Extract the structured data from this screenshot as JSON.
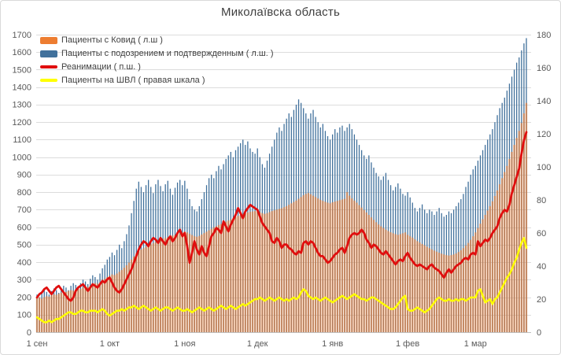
{
  "chart_data": {
    "type": "bar",
    "subtype": "combo-daily-bars-with-lines",
    "title": "Миколаївска область",
    "grid": true,
    "legend_position": "top-left",
    "left_axis": {
      "min": 0,
      "max": 1700,
      "step": 100,
      "side": "left"
    },
    "right_axis": {
      "min": 0,
      "max": 180,
      "step": 20,
      "side": "right"
    },
    "x_tick_labels": [
      "1 сен",
      "1 окт",
      "1 ноя",
      "1 дек",
      "1 янв",
      "1 фев",
      "1 мар"
    ],
    "x_tick_day_index": [
      0,
      30,
      61,
      91,
      122,
      153,
      181
    ],
    "colors": {
      "covid": "#ED7D31",
      "suspected": "#41719C",
      "reanimation": "#E00E0E",
      "shvl": "#FFFF00",
      "gridline": "#DCDCDC",
      "axis_text": "#595959"
    },
    "series": [
      {
        "name": "Пациенты с Ковид ( л.ш )",
        "type": "bar",
        "axis": "left",
        "color": "#ED7D31",
        "values": [
          195,
          198,
          192,
          200,
          206,
          203,
          210,
          216,
          213,
          220,
          226,
          222,
          230,
          236,
          240,
          237,
          244,
          250,
          247,
          255,
          262,
          258,
          266,
          274,
          280,
          277,
          285,
          295,
          305,
          315,
          322,
          330,
          326,
          335,
          345,
          355,
          368,
          382,
          398,
          415,
          432,
          450,
          462,
          472,
          480,
          488,
          495,
          502,
          508,
          515,
          522,
          528,
          533,
          538,
          543,
          548,
          552,
          556,
          560,
          565,
          570,
          575,
          570,
          562,
          555,
          548,
          545,
          550,
          558,
          566,
          574,
          582,
          590,
          598,
          605,
          612,
          618,
          625,
          632,
          638,
          645,
          652,
          658,
          664,
          670,
          676,
          680,
          684,
          688,
          690,
          692,
          690,
          686,
          680,
          676,
          680,
          686,
          692,
          696,
          700,
          704,
          708,
          714,
          720,
          728,
          736,
          744,
          752,
          762,
          772,
          782,
          790,
          795,
          788,
          780,
          772,
          764,
          756,
          750,
          745,
          740,
          736,
          742,
          746,
          750,
          754,
          758,
          762,
          800,
          780,
          764,
          752,
          740,
          726,
          712,
          698,
          684,
          670,
          656,
          642,
          628,
          615,
          605,
          595,
          586,
          578,
          571,
          565,
          560,
          556,
          560,
          565,
          570,
          556,
          548,
          540,
          530,
          520,
          512,
          504,
          496,
          488,
          480,
          473,
          466,
          460,
          454,
          448,
          444,
          440,
          438,
          440,
          444,
          450,
          458,
          468,
          480,
          494,
          510,
          528,
          548,
          570,
          595,
          620,
          645,
          670,
          695,
          720,
          748,
          778,
          810,
          845,
          880,
          915,
          950,
          990,
          1030,
          1070,
          1110,
          1150,
          1195,
          1250,
          1310
        ]
      },
      {
        "name": "Пациенты с подозрением и подтвержденным ( л.ш. )",
        "type": "bar",
        "axis": "left",
        "color": "#41719C",
        "values": [
          215,
          200,
          225,
          240,
          230,
          215,
          235,
          250,
          240,
          225,
          250,
          265,
          255,
          240,
          265,
          280,
          270,
          255,
          280,
          300,
          290,
          275,
          305,
          325,
          315,
          300,
          335,
          365,
          385,
          415,
          430,
          455,
          440,
          470,
          500,
          480,
          520,
          560,
          610,
          680,
          750,
          820,
          860,
          830,
          800,
          840,
          870,
          830,
          795,
          845,
          870,
          835,
          805,
          845,
          865,
          820,
          785,
          825,
          855,
          870,
          840,
          865,
          820,
          760,
          720,
          700,
          690,
          720,
          760,
          800,
          840,
          880,
          900,
          880,
          920,
          950,
          930,
          960,
          990,
          1010,
          1030,
          1000,
          1040,
          1060,
          1080,
          1100,
          1070,
          1090,
          1050,
          1030,
          1020,
          1050,
          1000,
          960,
          940,
          980,
          1020,
          1060,
          1100,
          1140,
          1170,
          1150,
          1190,
          1220,
          1250,
          1230,
          1270,
          1300,
          1330,
          1310,
          1280,
          1250,
          1220,
          1250,
          1270,
          1230,
          1200,
          1170,
          1190,
          1150,
          1120,
          1100,
          1130,
          1160,
          1140,
          1170,
          1180,
          1150,
          1170,
          1190,
          1160,
          1130,
          1100,
          1070,
          1040,
          1010,
          990,
          1010,
          970,
          940,
          910,
          890,
          870,
          890,
          910,
          870,
          840,
          810,
          830,
          850,
          820,
          790,
          780,
          800,
          770,
          740,
          710,
          690,
          710,
          730,
          700,
          680,
          700,
          690,
          670,
          690,
          710,
          680,
          660,
          670,
          690,
          680,
          700,
          720,
          740,
          760,
          790,
          830,
          860,
          900,
          930,
          950,
          980,
          1010,
          1040,
          1070,
          1100,
          1130,
          1160,
          1200,
          1240,
          1280,
          1310,
          1340,
          1380,
          1420,
          1460,
          1500,
          1540,
          1570,
          1610,
          1650,
          1680
        ]
      },
      {
        "name": "Реанимации ( п.ш. )",
        "type": "line",
        "axis": "right",
        "color": "#E00E0E",
        "values": [
          21,
          23,
          24,
          26,
          27,
          25,
          23,
          25,
          27,
          28,
          26,
          24,
          22,
          20,
          19,
          21,
          25,
          27,
          28,
          29,
          27,
          25,
          27,
          29,
          28,
          27,
          29,
          31,
          30,
          32,
          33,
          30,
          27,
          25,
          24,
          26,
          29,
          32,
          35,
          38,
          42,
          46,
          50,
          53,
          55,
          54,
          52,
          55,
          57,
          56,
          54,
          57,
          55,
          53,
          56,
          58,
          55,
          57,
          60,
          62,
          58,
          60,
          52,
          42,
          48,
          55,
          50,
          47,
          52,
          48,
          46,
          52,
          58,
          60,
          63,
          62,
          60,
          67,
          64,
          61,
          65,
          68,
          71,
          75,
          72,
          69,
          73,
          75,
          77,
          76,
          75,
          74,
          70,
          66,
          64,
          62,
          60,
          55,
          54,
          57,
          55,
          51,
          53,
          53,
          51,
          50,
          48,
          47,
          49,
          48,
          54,
          55,
          53,
          55,
          54,
          51,
          48,
          46,
          46,
          44,
          42,
          43,
          45,
          47,
          48,
          50,
          51,
          48,
          52,
          57,
          59,
          60,
          59,
          60,
          62,
          60,
          56,
          54,
          51,
          53,
          52,
          50,
          48,
          47,
          49,
          47,
          45,
          43,
          41,
          43,
          44,
          43,
          46,
          48,
          45,
          43,
          41,
          40,
          41,
          40,
          39,
          38,
          40,
          41,
          39,
          38,
          37,
          35,
          33,
          36,
          38,
          36,
          38,
          40,
          41,
          42,
          44,
          45,
          44,
          47,
          48,
          47,
          55,
          52,
          54,
          56,
          55,
          57,
          60,
          62,
          64,
          69,
          72,
          74,
          73,
          77,
          84,
          89,
          94,
          99,
          108,
          116,
          121
        ]
      },
      {
        "name": "Пациенты на ШВЛ ( правая шкала )",
        "type": "line",
        "axis": "right",
        "color": "#FFFF00",
        "values": [
          9,
          8,
          7,
          6,
          6,
          7,
          6,
          7,
          8,
          8,
          9,
          10,
          11,
          12,
          12,
          11,
          11,
          12,
          13,
          13,
          12,
          12,
          13,
          13,
          13,
          12,
          13,
          14,
          13,
          11,
          10,
          11,
          12,
          13,
          13,
          14,
          13,
          14,
          15,
          15,
          16,
          15,
          14,
          15,
          16,
          15,
          14,
          13,
          14,
          15,
          14,
          13,
          14,
          15,
          15,
          14,
          13,
          14,
          15,
          14,
          13,
          13,
          14,
          13,
          12,
          13,
          14,
          15,
          14,
          13,
          14,
          15,
          14,
          13,
          14,
          15,
          16,
          15,
          14,
          15,
          16,
          15,
          14,
          15,
          16,
          17,
          16,
          17,
          18,
          19,
          20,
          20,
          21,
          20,
          19,
          20,
          21,
          20,
          19,
          20,
          21,
          20,
          19,
          20,
          19,
          20,
          21,
          20,
          21,
          24,
          26,
          25,
          22,
          21,
          20,
          21,
          20,
          19,
          20,
          21,
          20,
          19,
          18,
          19,
          20,
          21,
          22,
          21,
          20,
          21,
          22,
          23,
          22,
          21,
          20,
          20,
          19,
          20,
          21,
          21,
          20,
          19,
          18,
          17,
          16,
          15,
          14,
          14,
          15,
          17,
          19,
          21,
          22,
          14,
          13,
          13,
          14,
          15,
          14,
          13,
          12,
          13,
          14,
          16,
          18,
          20,
          21,
          20,
          19,
          19,
          20,
          19,
          19,
          20,
          19,
          20,
          20,
          19,
          20,
          21,
          21,
          21,
          25,
          26,
          22,
          18,
          19,
          20,
          17,
          20,
          21,
          24,
          27,
          30,
          33,
          35,
          38,
          42,
          45,
          50,
          54,
          57,
          51
        ]
      }
    ]
  }
}
